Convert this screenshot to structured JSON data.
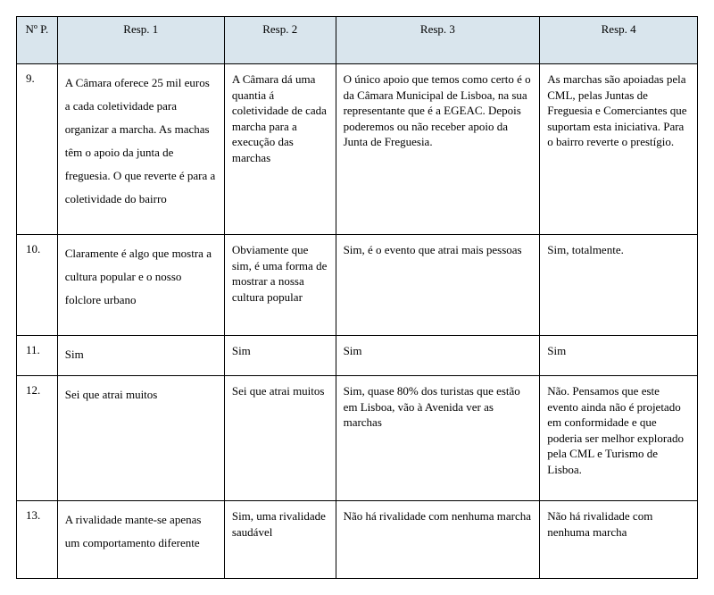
{
  "headers": {
    "num": "Nº P.",
    "r1": "Resp. 1",
    "r2": "Resp. 2",
    "r3": "Resp. 3",
    "r4": "Resp. 4"
  },
  "rows": {
    "row9": {
      "num": "9.",
      "r1": "A Câmara oferece 25 mil euros a cada coletividade para organizar a marcha. As machas têm o apoio da junta de freguesia. O que reverte é para a coletividade do bairro",
      "r2": "A Câmara dá uma quantia á coletividade de cada marcha para a execução das marchas",
      "r3": "O único apoio que temos como certo é o da Câmara Municipal de Lisboa, na sua representante que é a EGEAC. Depois poderemos ou não receber apoio da Junta de Freguesia.",
      "r4": "As marchas são apoiadas pela CML, pelas Juntas de Freguesia e Comerciantes que suportam esta iniciativa. Para o bairro reverte o prestígio."
    },
    "row10": {
      "num": "10.",
      "r1": "Claramente é algo que mostra a cultura popular e o nosso folclore urbano",
      "r2": "Obviamente que sim, é uma forma de mostrar a nossa cultura popular",
      "r3": "Sim, é o evento que atrai mais pessoas",
      "r4": "Sim, totalmente."
    },
    "row11": {
      "num": "11.",
      "r1": "Sim",
      "r2": "Sim",
      "r3": "Sim",
      "r4": "Sim"
    },
    "row12": {
      "num": "12.",
      "r1": "Sei que atrai muitos",
      "r2": "Sei que atrai muitos",
      "r3": "Sim, quase 80% dos turistas que estão em Lisboa, vão à Avenida ver as marchas",
      "r4": "Não. Pensamos que este evento ainda não é projetado em conformidade e que poderia ser melhor explorado pela CML e Turismo de Lisboa."
    },
    "row13": {
      "num": "13.",
      "r1": "A rivalidade mante-se apenas um comportamento diferente",
      "r2": "Sim, uma rivalidade saudável",
      "r3": "Não há rivalidade com nenhuma marcha",
      "r4": "Não há rivalidade com nenhuma marcha"
    }
  }
}
